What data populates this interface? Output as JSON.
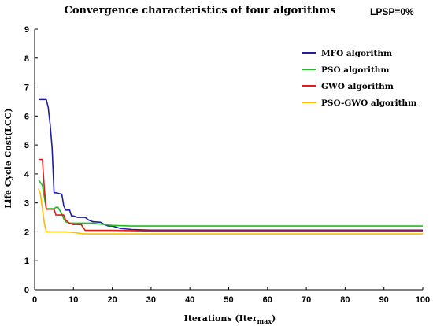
{
  "chart_data": {
    "type": "line",
    "title": "Convergence characteristics of four algorithms",
    "annotation": "LPSP=0%",
    "xlabel": "Iterations (Iter",
    "xlabel_sub": "max",
    "xlabel_suffix": ")",
    "ylabel": "Life Cycle Cost(LCC)",
    "xlim": [
      0,
      100
    ],
    "ylim": [
      0,
      9
    ],
    "xticks": [
      0,
      10,
      20,
      30,
      40,
      50,
      60,
      70,
      80,
      90,
      100
    ],
    "yticks": [
      0,
      1,
      2,
      3,
      4,
      5,
      6,
      7,
      8,
      9
    ],
    "grid": false,
    "legend_position": "top-right",
    "series": [
      {
        "name": "MFO algorithm",
        "color": "#1f1fa0",
        "x": [
          1,
          3,
          3.5,
          4,
          4.5,
          5,
          5.5,
          7,
          7.5,
          8,
          9,
          9.5,
          10,
          11,
          13,
          14,
          15,
          17,
          18,
          19,
          20,
          22,
          25,
          30,
          40,
          60,
          80,
          100
        ],
        "y": [
          6.57,
          6.57,
          6.3,
          5.7,
          4.9,
          3.35,
          3.35,
          3.3,
          2.9,
          2.75,
          2.75,
          2.55,
          2.55,
          2.5,
          2.5,
          2.4,
          2.35,
          2.33,
          2.25,
          2.2,
          2.2,
          2.12,
          2.08,
          2.06,
          2.06,
          2.06,
          2.06,
          2.06
        ]
      },
      {
        "name": "PSO algorithm",
        "color": "#22bb22",
        "x": [
          1,
          1.5,
          2,
          2.5,
          3,
          5,
          5.5,
          6,
          7,
          7.5,
          8,
          9,
          10,
          12,
          15,
          18,
          20,
          25,
          100
        ],
        "y": [
          3.8,
          3.7,
          3.6,
          3.2,
          2.8,
          2.8,
          2.85,
          2.85,
          2.62,
          2.45,
          2.35,
          2.3,
          2.3,
          2.3,
          2.3,
          2.25,
          2.22,
          2.2,
          2.2
        ]
      },
      {
        "name": "GWO algorithm",
        "color": "#e01b1b",
        "x": [
          1,
          2,
          2.5,
          3,
          4,
          5,
          5.5,
          6,
          7.5,
          8,
          9,
          10,
          12,
          13,
          20,
          30,
          100
        ],
        "y": [
          4.5,
          4.5,
          3.5,
          2.78,
          2.78,
          2.78,
          2.58,
          2.58,
          2.58,
          2.4,
          2.3,
          2.25,
          2.25,
          2.05,
          2.05,
          2.03,
          2.03
        ]
      },
      {
        "name": "PSO-GWO algorithm",
        "color": "#ffbb00",
        "x": [
          1,
          1.5,
          2,
          2.5,
          3,
          4,
          6,
          8,
          10,
          11,
          12,
          13,
          20,
          100
        ],
        "y": [
          3.5,
          3.3,
          2.8,
          2.3,
          2.0,
          2.0,
          2.0,
          2.0,
          1.98,
          1.96,
          1.94,
          1.93,
          1.93,
          1.93
        ]
      }
    ]
  }
}
